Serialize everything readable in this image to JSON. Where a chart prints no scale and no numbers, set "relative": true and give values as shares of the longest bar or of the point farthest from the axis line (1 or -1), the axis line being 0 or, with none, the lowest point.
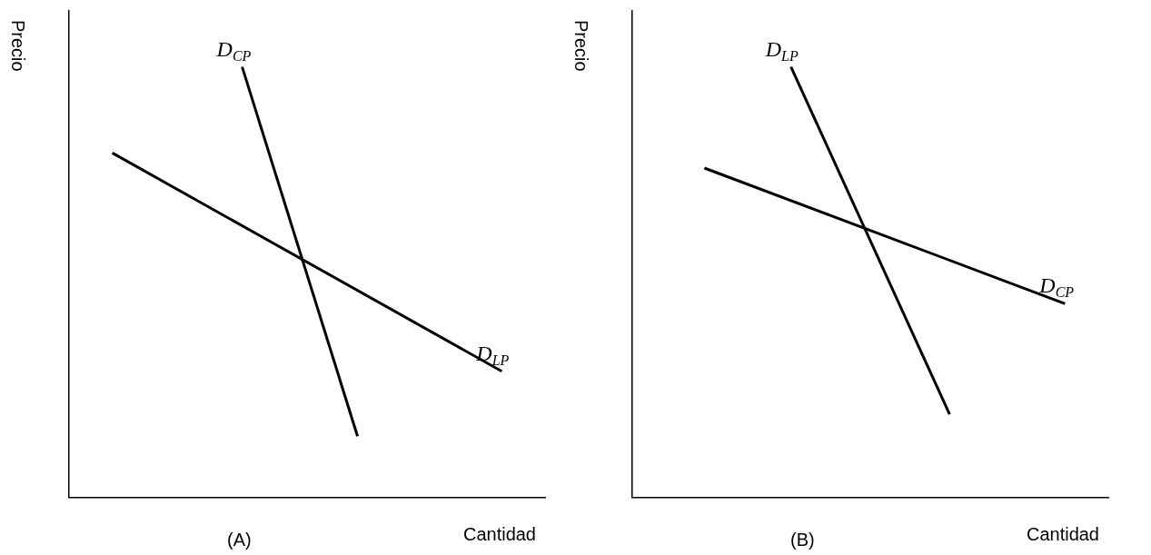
{
  "chart_data": [
    {
      "type": "line",
      "relative": true,
      "xlabel": "Cantidad",
      "ylabel": "Precio",
      "annotations": [
        "(A)"
      ],
      "marker": "none",
      "line_style": "solid",
      "categories": [
        null,
        null,
        null,
        null,
        null,
        null,
        null,
        null,
        null,
        null,
        null,
        null,
        null,
        null,
        null,
        null,
        null,
        null,
        null,
        null,
        null,
        null,
        null,
        null,
        null,
        null,
        null,
        null,
        null,
        null,
        null,
        null,
        null,
        null
      ],
      "series": [
        {
          "name": "D$_{CP}$",
          "color": "#000000",
          "values": [
            null,
            null,
            null,
            null,
            null,
            null,
            null,
            null,
            null,
            null,
            null,
            null,
            1,
            null,
            null,
            null,
            null,
            null,
            null,
            null,
            0.142,
            null,
            null,
            null,
            null,
            null,
            null,
            null,
            null,
            null,
            null,
            null,
            null,
            null
          ]
        },
        {
          "name": "D$_{LP}$",
          "color": "#000000",
          "values": [
            null,
            null,
            null,
            0.8,
            null,
            null,
            null,
            null,
            null,
            null,
            null,
            null,
            null,
            null,
            null,
            null,
            null,
            null,
            null,
            null,
            null,
            null,
            null,
            null,
            null,
            null,
            null,
            null,
            null,
            null,
            0.293,
            null,
            null,
            null
          ]
        }
      ]
    },
    {
      "type": "line",
      "relative": true,
      "xlabel": "Cantidad",
      "ylabel": "Precio",
      "annotations": [
        "(B)"
      ],
      "marker": "none",
      "line_style": "solid",
      "categories": [
        null,
        null,
        null,
        null,
        null,
        null,
        null,
        null,
        null,
        null,
        null,
        null,
        null,
        null,
        null,
        null,
        null,
        null,
        null,
        null,
        null,
        null,
        null,
        null,
        null,
        null,
        null,
        null,
        null,
        null,
        null,
        null,
        null,
        null
      ],
      "series": [
        {
          "name": "D$_{LP}$",
          "color": "#000000",
          "values": [
            null,
            null,
            null,
            null,
            null,
            null,
            null,
            null,
            null,
            null,
            null,
            1,
            null,
            null,
            null,
            null,
            null,
            null,
            null,
            null,
            null,
            null,
            0.193,
            null,
            null,
            null,
            null,
            null,
            null,
            null,
            null,
            null,
            null,
            null
          ]
        },
        {
          "name": "D$_{CP}$",
          "color": "#000000",
          "values": [
            null,
            null,
            null,
            null,
            null,
            0.765,
            null,
            null,
            null,
            null,
            null,
            null,
            null,
            null,
            null,
            null,
            null,
            null,
            null,
            null,
            null,
            null,
            null,
            null,
            null,
            null,
            null,
            null,
            null,
            null,
            0.45,
            null,
            null,
            null
          ]
        }
      ]
    }
  ]
}
